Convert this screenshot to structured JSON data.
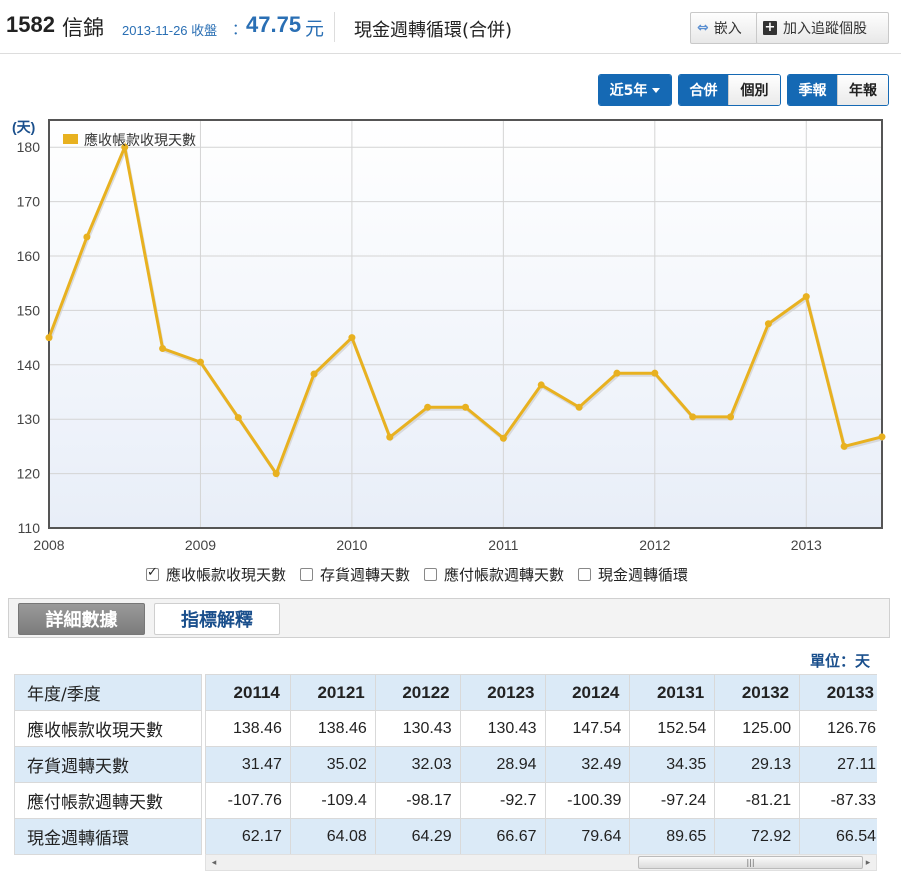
{
  "header": {
    "stock_code": "1582",
    "stock_name": "信錦",
    "quote_date": "2013-11-26 收盤",
    "quote_colon": "：",
    "quote_price": "47.75",
    "quote_unit": "元",
    "page_title": "現金週轉循環(合併)",
    "embed_label": "嵌入",
    "track_label": "加入追蹤個股"
  },
  "toolbar": {
    "range_label": "近5年",
    "scope": [
      "合併",
      "個別"
    ],
    "period": [
      "季報",
      "年報"
    ]
  },
  "chart_data": {
    "type": "line",
    "ylabel": "(天)",
    "ylim": [
      110,
      185
    ],
    "yticks": [
      110,
      120,
      130,
      140,
      150,
      160,
      170,
      180
    ],
    "xlim": [
      2008.0,
      2013.5
    ],
    "xticks": [
      "2008",
      "2009",
      "2010",
      "2011",
      "2012",
      "2013"
    ],
    "legend_position": "top-left",
    "grid": true,
    "series": [
      {
        "name": "應收帳款收現天數",
        "color": "#e8b120",
        "x": [
          2008.0,
          2008.25,
          2008.5,
          2008.75,
          2009.0,
          2009.25,
          2009.5,
          2009.75,
          2010.0,
          2010.25,
          2010.5,
          2010.75,
          2011.0,
          2011.25,
          2011.5,
          2011.75,
          2012.0,
          2012.25,
          2012.5,
          2012.75,
          2013.0,
          2013.25,
          2013.5
        ],
        "values": [
          145,
          163.5,
          180,
          143,
          140.5,
          130.3,
          120,
          138.3,
          145,
          126.7,
          132.2,
          132.2,
          126.5,
          136.3,
          132.2,
          138.46,
          138.46,
          130.43,
          130.43,
          147.54,
          152.54,
          125.0,
          126.76
        ]
      }
    ]
  },
  "series_toggles": [
    {
      "label": "應收帳款收現天數",
      "checked": true
    },
    {
      "label": "存貨週轉天數",
      "checked": false
    },
    {
      "label": "應付帳款週轉天數",
      "checked": false
    },
    {
      "label": "現金週轉循環",
      "checked": false
    }
  ],
  "tabs": [
    "詳細數據",
    "指標解釋"
  ],
  "unit_note": "單位：天",
  "table": {
    "corner": "年度/季度",
    "columns": [
      "20114",
      "20121",
      "20122",
      "20123",
      "20124",
      "20131",
      "20132",
      "20133"
    ],
    "rows": [
      {
        "label": "應收帳款收現天數",
        "values": [
          "138.46",
          "138.46",
          "130.43",
          "130.43",
          "147.54",
          "152.54",
          "125.00",
          "126.76"
        ]
      },
      {
        "label": "存貨週轉天數",
        "values": [
          "31.47",
          "35.02",
          "32.03",
          "28.94",
          "32.49",
          "34.35",
          "29.13",
          "27.11"
        ]
      },
      {
        "label": "應付帳款週轉天數",
        "values": [
          "-107.76",
          "-109.4",
          "-98.17",
          "-92.7",
          "-100.39",
          "-97.24",
          "-81.21",
          "-87.33"
        ]
      },
      {
        "label": "現金週轉循環",
        "values": [
          "62.17",
          "64.08",
          "64.29",
          "66.67",
          "79.64",
          "89.65",
          "72.92",
          "66.54"
        ]
      }
    ]
  },
  "scrollbar": {
    "thumb_grip": "|||",
    "left_arrow": "◂",
    "right_arrow": "▸"
  }
}
